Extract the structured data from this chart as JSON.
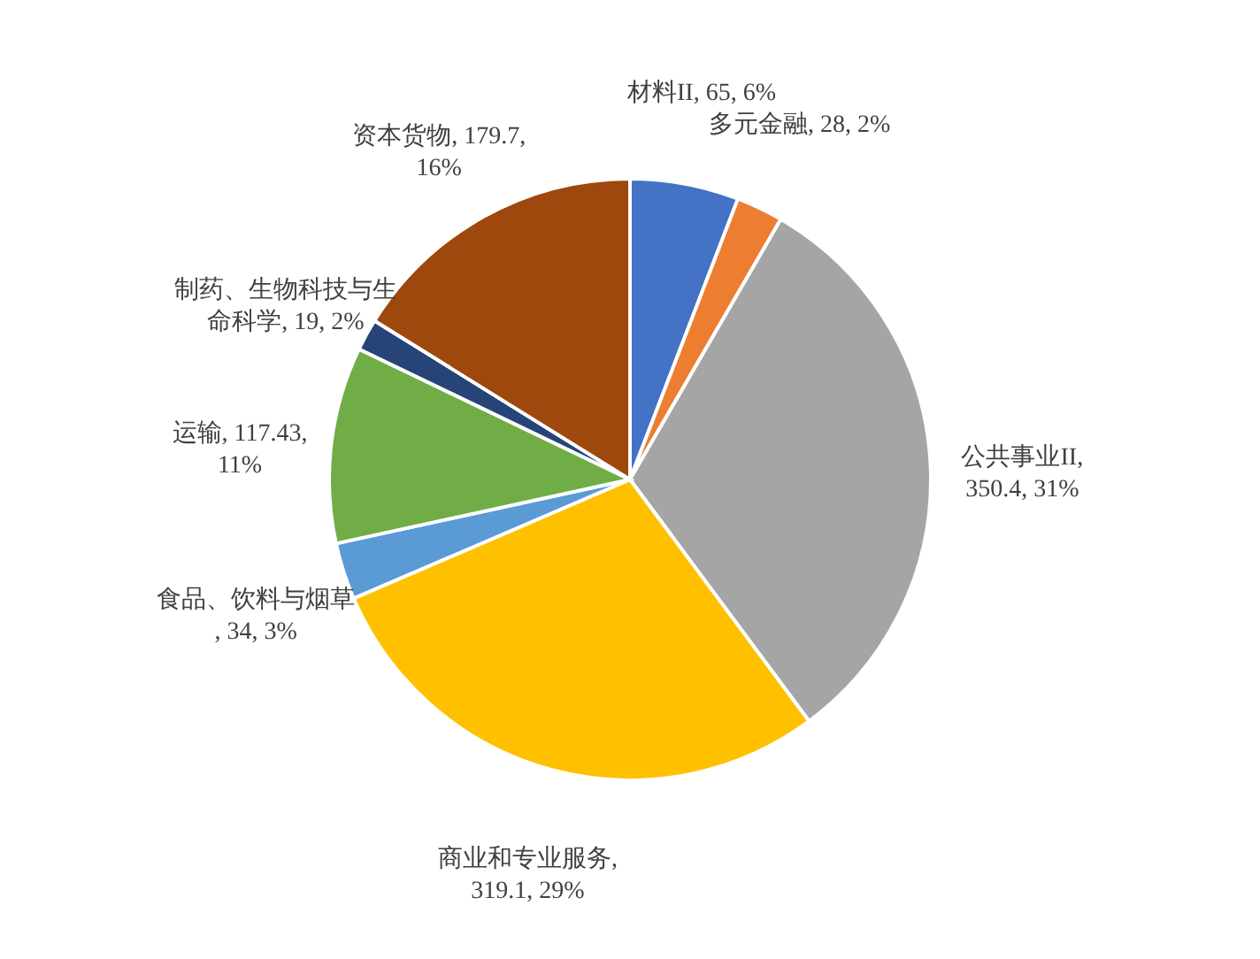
{
  "chart_data": {
    "type": "pie",
    "categories": [
      "材料II",
      "多元金融",
      "公共事业II",
      "商业和专业服务",
      "食品、饮料与烟草",
      "运输",
      "制药、生物科技与生命科学",
      "资本货物"
    ],
    "values": [
      65,
      28,
      350.4,
      319.1,
      34,
      117.43,
      19,
      179.7
    ],
    "value_labels": [
      ", 65, 6%",
      ", 28, 2%",
      ", 350.4, 31%",
      ", 319.1, 29%",
      ", 34, 3%",
      ", 117.43, 11%",
      ", 19, 2%",
      ", 179.7, 16%"
    ],
    "colors": [
      "#4472c4",
      "#ed7d31",
      "#a5a5a5",
      "#ffc000",
      "#5b9bd5",
      "#70ad47",
      "#264478",
      "#9e480e"
    ]
  }
}
